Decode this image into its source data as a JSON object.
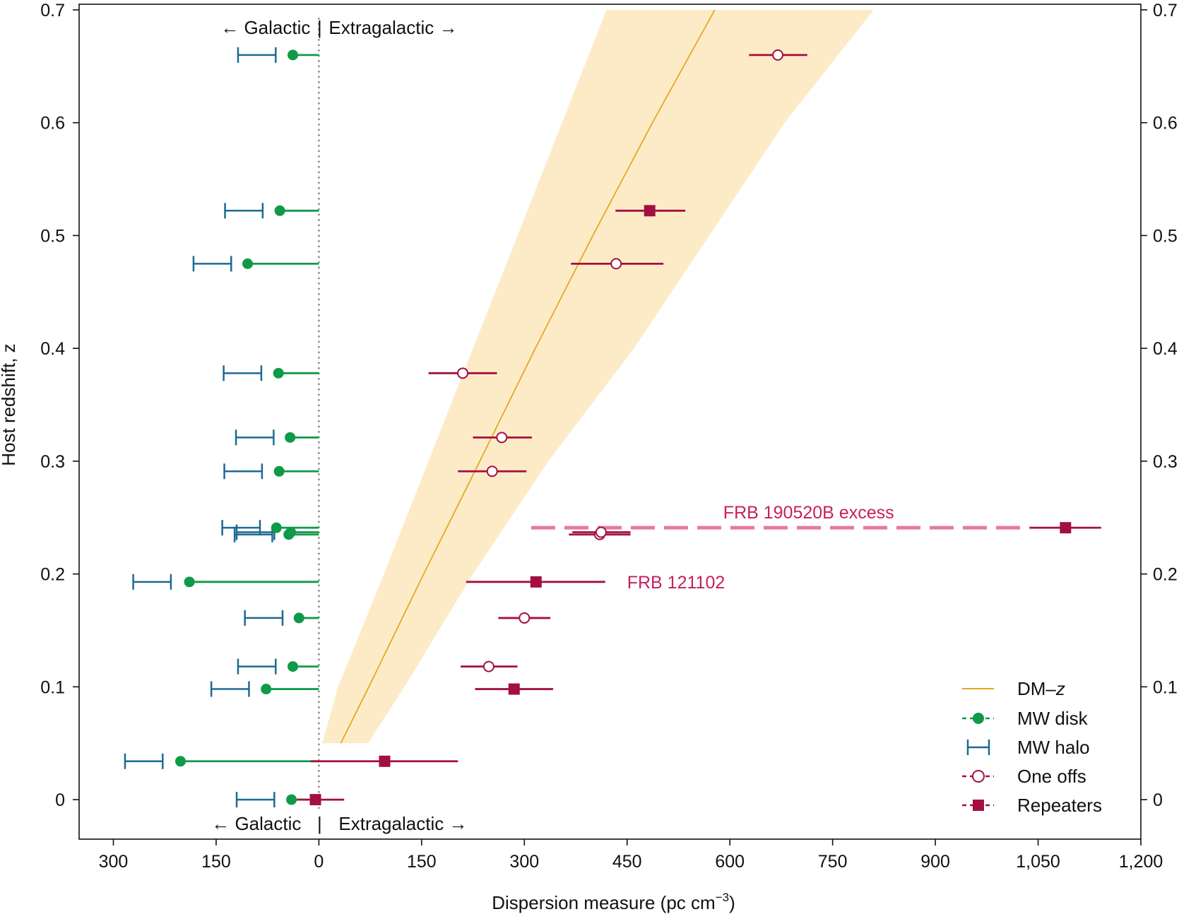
{
  "chart_data": {
    "type": "scatter",
    "xlabel": "Dispersion measure (pc cm",
    "xlabel_sup": "−3",
    "xlabel_close": ")",
    "ylabel": "Host redshift, z",
    "xlim": [
      -350,
      1200
    ],
    "ylim": [
      -0.035,
      0.705
    ],
    "x_ticks": [
      -300,
      -150,
      0,
      150,
      300,
      450,
      600,
      750,
      900,
      1050,
      1200
    ],
    "x_tick_labels": [
      "300",
      "150",
      "0",
      "150",
      "300",
      "450",
      "600",
      "750",
      "900",
      "1,050",
      "1,200"
    ],
    "y_ticks": [
      0,
      0.1,
      0.2,
      0.3,
      0.4,
      0.5,
      0.6,
      0.7
    ],
    "y_tick_labels": [
      "0",
      "0.1",
      "0.2",
      "0.3",
      "0.4",
      "0.5",
      "0.6",
      "0.7"
    ],
    "annotations": {
      "top_left": "← Galactic",
      "top_right": "Extragalactic →",
      "bottom_left": "← Galactic",
      "bottom_right": "Extragalactic →",
      "divider": "|",
      "frb_excess": "FRB 190520B excess",
      "frb_121102": "FRB 121102"
    },
    "legend": {
      "position": "lower-right",
      "entries": [
        {
          "name": "DM–",
          "italic": "z",
          "marker": "line"
        },
        {
          "name": "MW disk",
          "marker": "filled-circle"
        },
        {
          "name": "MW halo",
          "marker": "errorbar"
        },
        {
          "name": "One offs",
          "marker": "open-circle"
        },
        {
          "name": "Repeaters",
          "marker": "filled-square"
        }
      ]
    },
    "colors": {
      "dm_z": "#e8a820",
      "band": "#fdebc8",
      "mw_disk": "#0f9a4a",
      "mw_halo": "#1c6a94",
      "frb": "#a3103f",
      "excess": "#e77a9c",
      "frb_label": "#c71f5e",
      "zero_line": "#888888"
    },
    "dm_z_relation": {
      "z": [
        0.05,
        0.1,
        0.2,
        0.3,
        0.4,
        0.5,
        0.6,
        0.7
      ],
      "dm": [
        32,
        73,
        153,
        235,
        316,
        400,
        487,
        578
      ],
      "dm_low": [
        5,
        28,
        95,
        160,
        225,
        290,
        355,
        420
      ],
      "dm_high": [
        72,
        125,
        225,
        335,
        460,
        570,
        680,
        810
      ]
    },
    "series": [
      {
        "name": "MW disk",
        "points": [
          {
            "z": 0.0,
            "dm": -40
          },
          {
            "z": 0.034,
            "dm": -202
          },
          {
            "z": 0.098,
            "dm": -77
          },
          {
            "z": 0.118,
            "dm": -38
          },
          {
            "z": 0.161,
            "dm": -29
          },
          {
            "z": 0.193,
            "dm": -189
          },
          {
            "z": 0.235,
            "dm": -44
          },
          {
            "z": 0.237,
            "dm": -41
          },
          {
            "z": 0.241,
            "dm": -62
          },
          {
            "z": 0.291,
            "dm": -58
          },
          {
            "z": 0.321,
            "dm": -42
          },
          {
            "z": 0.378,
            "dm": -59
          },
          {
            "z": 0.475,
            "dm": -104
          },
          {
            "z": 0.522,
            "dm": -57
          },
          {
            "z": 0.66,
            "dm": -38
          }
        ]
      },
      {
        "name": "MW halo",
        "ranges": [
          {
            "z": 0.0,
            "lo": -120,
            "hi": -65
          },
          {
            "z": 0.034,
            "lo": -283,
            "hi": -228
          },
          {
            "z": 0.098,
            "lo": -157,
            "hi": -102
          },
          {
            "z": 0.118,
            "lo": -118,
            "hi": -63
          },
          {
            "z": 0.161,
            "lo": -108,
            "hi": -53
          },
          {
            "z": 0.193,
            "lo": -271,
            "hi": -216
          },
          {
            "z": 0.235,
            "lo": -123,
            "hi": -68
          },
          {
            "z": 0.237,
            "lo": -120,
            "hi": -65
          },
          {
            "z": 0.241,
            "lo": -141,
            "hi": -86
          },
          {
            "z": 0.291,
            "lo": -138,
            "hi": -83
          },
          {
            "z": 0.321,
            "lo": -121,
            "hi": -66
          },
          {
            "z": 0.378,
            "lo": -139,
            "hi": -84
          },
          {
            "z": 0.475,
            "lo": -183,
            "hi": -128
          },
          {
            "z": 0.522,
            "lo": -137,
            "hi": -82
          },
          {
            "z": 0.66,
            "lo": -118,
            "hi": -63
          }
        ]
      },
      {
        "name": "One offs",
        "points": [
          {
            "z": 0.118,
            "dm": 248,
            "lo": 207,
            "hi": 290
          },
          {
            "z": 0.161,
            "dm": 300,
            "lo": 262,
            "hi": 338
          },
          {
            "z": 0.235,
            "dm": 410,
            "lo": 365,
            "hi": 455
          },
          {
            "z": 0.237,
            "dm": 412,
            "lo": 370,
            "hi": 455
          },
          {
            "z": 0.291,
            "dm": 253,
            "lo": 203,
            "hi": 303
          },
          {
            "z": 0.321,
            "dm": 267,
            "lo": 225,
            "hi": 311
          },
          {
            "z": 0.378,
            "dm": 210,
            "lo": 160,
            "hi": 260
          },
          {
            "z": 0.475,
            "dm": 434,
            "lo": 368,
            "hi": 503
          },
          {
            "z": 0.66,
            "dm": 670,
            "lo": 628,
            "hi": 713
          }
        ]
      },
      {
        "name": "Repeaters",
        "points": [
          {
            "z": 0.0,
            "dm": -5,
            "lo": -32,
            "hi": 37
          },
          {
            "z": 0.034,
            "dm": 96,
            "lo": -12,
            "hi": 203
          },
          {
            "z": 0.098,
            "dm": 285,
            "lo": 228,
            "hi": 342
          },
          {
            "z": 0.193,
            "dm": 317,
            "lo": 215,
            "hi": 418
          },
          {
            "z": 0.241,
            "dm": 1090,
            "lo": 1038,
            "hi": 1142
          },
          {
            "z": 0.522,
            "dm": 483,
            "lo": 433,
            "hi": 535
          }
        ]
      }
    ],
    "excess_line": {
      "z": 0.241,
      "dm_from": 310,
      "dm_to": 1038
    }
  }
}
